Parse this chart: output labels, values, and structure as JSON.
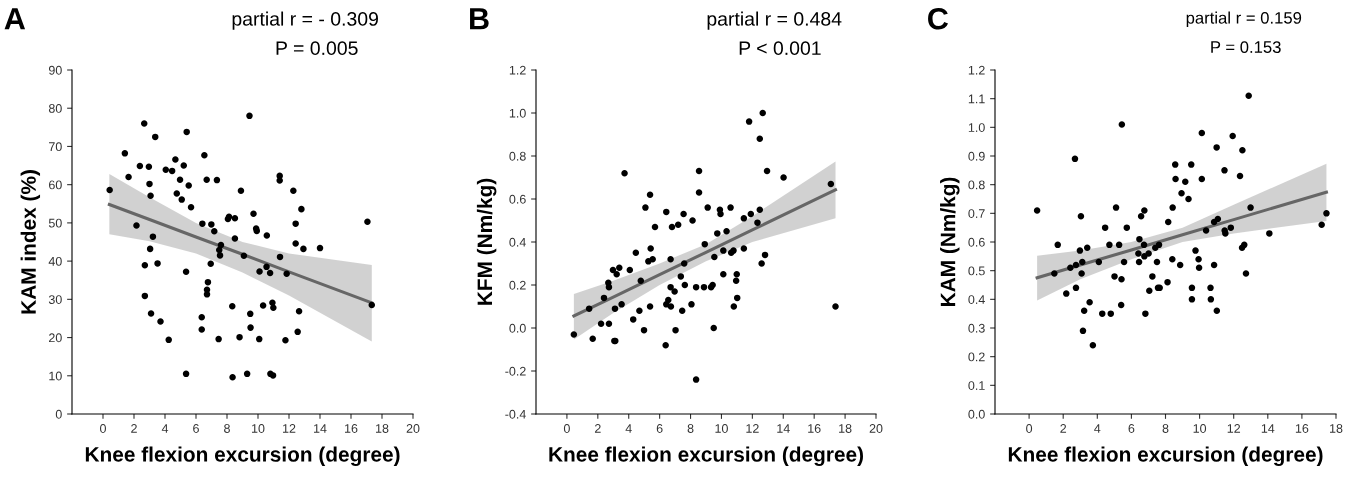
{
  "chart_data": [
    {
      "type": "scatter",
      "title": "A",
      "xlabel": "Knee flexion excursion (degree)",
      "ylabel": "KAM index (%)",
      "annotations": [
        "partial r = - 0.309",
        "P = 0.005"
      ],
      "xlim": [
        -2,
        20
      ],
      "xticks": [
        0,
        2,
        4,
        6,
        8,
        10,
        12,
        14,
        16,
        18,
        20
      ],
      "ylim": [
        0,
        90
      ],
      "yticks": [
        0,
        10,
        20,
        30,
        40,
        50,
        60,
        70,
        80,
        90
      ],
      "grid": false,
      "series": [
        {
          "marker": "circle",
          "color": "#000000",
          "x": [
            0.43,
            1.41,
            1.65,
            2.16,
            2.38,
            2.66,
            2.7,
            2.7,
            2.96,
            3.0,
            3.07,
            3.04,
            3.1,
            3.22,
            3.37,
            3.52,
            3.71,
            4.05,
            4.24,
            4.46,
            4.67,
            4.76,
            4.97,
            5.08,
            5.21,
            5.36,
            5.36,
            5.4,
            5.53,
            5.68,
            6.37,
            6.37,
            6.41,
            6.54,
            6.69,
            6.71,
            6.71,
            6.77,
            6.95,
            6.99,
            7.18,
            7.35,
            7.46,
            7.5,
            7.55,
            7.61,
            8.06,
            8.13,
            8.36,
            8.34,
            8.51,
            8.51,
            8.81,
            8.9,
            9.09,
            9.3,
            9.45,
            9.5,
            9.52,
            9.71,
            9.88,
            9.92,
            10.08,
            10.1,
            10.33,
            10.55,
            10.57,
            10.78,
            10.8,
            10.97,
            10.93,
            10.99,
            11.4,
            11.4,
            11.42,
            11.77,
            11.85,
            12.28,
            12.43,
            12.43,
            12.56,
            12.65,
            12.8,
            12.93,
            14.0,
            17.06,
            17.34
          ],
          "values": [
            58.6,
            68.2,
            62.0,
            49.3,
            64.9,
            76.0,
            38.9,
            30.9,
            64.7,
            60.2,
            57.1,
            43.2,
            26.3,
            46.4,
            72.5,
            39.4,
            24.2,
            63.9,
            19.4,
            63.6,
            66.6,
            57.7,
            61.3,
            56.1,
            65.0,
            10.5,
            37.2,
            73.8,
            59.8,
            54.1,
            25.3,
            22.1,
            49.8,
            67.7,
            61.3,
            31.3,
            32.5,
            34.5,
            39.3,
            49.6,
            47.8,
            61.2,
            19.6,
            42.9,
            41.5,
            44.2,
            51.0,
            51.6,
            9.6,
            28.2,
            51.2,
            45.9,
            20.1,
            58.4,
            41.4,
            10.5,
            78.0,
            26.2,
            22.6,
            52.4,
            48.5,
            47.9,
            19.6,
            37.3,
            28.4,
            38.5,
            46.7,
            36.9,
            10.5,
            10.1,
            29.1,
            27.8,
            62.3,
            61.1,
            41.1,
            19.3,
            36.7,
            58.4,
            44.6,
            49.8,
            21.5,
            26.9,
            53.6,
            43.2,
            43.4,
            50.3,
            28.5
          ]
        },
        {
          "type": "line",
          "color": "#666666",
          "x": [
            0.41,
            3,
            6,
            9,
            12,
            17.34
          ],
          "values": [
            54.8,
            50.9,
            46.3,
            41.8,
            37.2,
            29.1
          ],
          "lower": [
            47.0,
            45.2,
            42.0,
            37.0,
            31.0,
            19.0
          ],
          "upper": [
            62.8,
            56.7,
            50.0,
            45.0,
            42.0,
            39.0
          ],
          "marker": "none"
        }
      ]
    },
    {
      "type": "scatter",
      "title": "B",
      "xlabel": "Knee flexion excursion (degree)",
      "ylabel": "KFM (Nm/kg)",
      "annotations": [
        "partial r = 0.484",
        "P < 0.001"
      ],
      "xlim": [
        -2,
        20
      ],
      "xticks": [
        0,
        2,
        4,
        6,
        8,
        10,
        12,
        14,
        16,
        18,
        20
      ],
      "ylim": [
        -0.4,
        1.2
      ],
      "yticks": [
        {
          "value": -0.4,
          "label": "-0.4"
        },
        {
          "value": -0.2,
          "label": "-0.2"
        },
        {
          "value": 0,
          "label": "0.0"
        },
        0.2,
        0.4,
        0.6,
        0.8,
        {
          "value": 1.0,
          "label": "1.0"
        },
        1.2
      ],
      "grid": false,
      "series": [
        {
          "marker": "circle",
          "color": "#000000",
          "x": [
            0.45,
            1.44,
            1.67,
            2.21,
            2.4,
            2.68,
            2.72,
            2.72,
            2.98,
            3.07,
            3.11,
            3.13,
            3.22,
            3.39,
            3.54,
            3.73,
            4.07,
            4.29,
            4.46,
            4.69,
            4.78,
            4.99,
            5.08,
            5.27,
            5.38,
            5.42,
            5.38,
            5.55,
            5.7,
            6.39,
            6.43,
            6.43,
            6.56,
            6.71,
            6.71,
            6.73,
            6.8,
            6.97,
            7.03,
            7.2,
            7.37,
            7.46,
            7.55,
            7.59,
            7.63,
            8.06,
            8.13,
            8.36,
            8.36,
            8.55,
            8.55,
            8.87,
            8.92,
            9.11,
            9.33,
            9.43,
            9.5,
            9.54,
            9.73,
            9.9,
            9.94,
            10.12,
            10.12,
            10.33,
            10.59,
            10.63,
            10.78,
            10.8,
            10.95,
            10.99,
            11.02,
            11.45,
            11.45,
            11.79,
            11.9,
            12.33,
            12.48,
            12.48,
            12.6,
            12.67,
            12.82,
            12.95,
            14.02,
            17.08,
            17.38
          ],
          "values": [
            -0.03,
            0.09,
            -0.05,
            0.02,
            0.14,
            0.21,
            0.19,
            0.02,
            0.27,
            -0.06,
            0.09,
            -0.06,
            0.25,
            0.28,
            0.11,
            0.72,
            0.27,
            0.04,
            0.35,
            0.08,
            0.22,
            -0.01,
            0.56,
            0.31,
            0.62,
            0.37,
            0.1,
            0.32,
            0.47,
            -0.08,
            0.54,
            0.11,
            0.13,
            0.32,
            0.19,
            0.1,
            0.47,
            0.17,
            -0.01,
            0.48,
            0.24,
            0.08,
            0.53,
            0.3,
            0.2,
            0.11,
            0.5,
            -0.24,
            0.19,
            0.73,
            0.63,
            0.19,
            0.39,
            0.56,
            0.19,
            0.2,
            0.0,
            0.33,
            0.44,
            0.55,
            0.53,
            0.25,
            0.36,
            0.45,
            0.56,
            0.35,
            0.36,
            0.1,
            0.22,
            0.25,
            0.14,
            0.37,
            0.51,
            0.96,
            0.53,
            0.49,
            0.55,
            0.88,
            0.3,
            1.0,
            0.34,
            0.73,
            0.7,
            0.67,
            0.1
          ]
        },
        {
          "type": "line",
          "color": "#666666",
          "x": [
            0.45,
            3,
            6,
            9,
            12,
            17.38
          ],
          "values": [
            0.056,
            0.144,
            0.248,
            0.352,
            0.456,
            0.643
          ],
          "lower": [
            -0.053,
            0.07,
            0.2,
            0.31,
            0.4,
            0.51
          ],
          "upper": [
            0.158,
            0.22,
            0.3,
            0.39,
            0.52,
            0.774
          ],
          "marker": "none"
        }
      ]
    },
    {
      "type": "scatter",
      "title": "C",
      "xlabel": "Knee flexion excursion (degree)",
      "ylabel": "KAM (Nm/kg)",
      "annotations": [
        "partial r = 0.159",
        "P = 0.153"
      ],
      "xlim": [
        -2,
        18
      ],
      "xticks": [
        0,
        2,
        4,
        6,
        8,
        10,
        12,
        14,
        16,
        18
      ],
      "ylim": [
        0,
        1.2
      ],
      "yticks": [
        {
          "value": 0,
          "label": "0.0"
        },
        0.1,
        0.2,
        0.3,
        0.4,
        0.5,
        0.6,
        0.7,
        0.8,
        0.9,
        {
          "value": 1.0,
          "label": "1.0"
        },
        1.1,
        1.2
      ],
      "grid": false,
      "series": [
        {
          "marker": "circle",
          "color": "#000000",
          "x": [
            0.47,
            1.48,
            1.68,
            2.18,
            2.42,
            2.69,
            2.75,
            2.75,
            2.98,
            3.04,
            3.08,
            3.12,
            3.16,
            3.23,
            3.41,
            3.55,
            3.74,
            4.09,
            4.29,
            4.46,
            4.71,
            4.79,
            5.01,
            5.1,
            5.28,
            5.42,
            5.4,
            5.44,
            5.57,
            5.73,
            6.41,
            6.45,
            6.47,
            6.57,
            6.74,
            6.76,
            6.76,
            6.82,
            7.01,
            7.05,
            7.23,
            7.4,
            7.5,
            7.56,
            7.62,
            7.66,
            8.12,
            8.16,
            8.4,
            8.42,
            8.57,
            8.59,
            8.86,
            8.94,
            9.16,
            9.35,
            9.51,
            9.55,
            9.55,
            9.76,
            9.94,
            9.97,
            10.13,
            10.13,
            10.38,
            10.64,
            10.66,
            10.85,
            10.85,
            11.0,
            11.07,
            11.01,
            11.46,
            11.47,
            11.51,
            11.83,
            11.94,
            12.37,
            12.51,
            12.49,
            12.62,
            12.72,
            12.88,
            12.99,
            14.09,
            17.16,
            17.44
          ],
          "values": [
            0.71,
            0.49,
            0.59,
            0.42,
            0.51,
            0.89,
            0.52,
            0.44,
            0.57,
            0.69,
            0.49,
            0.53,
            0.29,
            0.36,
            0.58,
            0.39,
            0.24,
            0.53,
            0.35,
            0.65,
            0.59,
            0.35,
            0.48,
            0.72,
            0.59,
            0.47,
            0.38,
            1.01,
            0.53,
            0.65,
            0.56,
            0.53,
            0.61,
            0.69,
            0.59,
            0.55,
            0.71,
            0.35,
            0.56,
            0.43,
            0.48,
            0.58,
            0.53,
            0.44,
            0.59,
            0.44,
            0.46,
            0.67,
            0.54,
            0.72,
            0.87,
            0.82,
            0.52,
            0.77,
            0.81,
            0.75,
            0.87,
            0.44,
            0.4,
            0.57,
            0.54,
            0.51,
            0.98,
            0.82,
            0.64,
            0.44,
            0.4,
            0.67,
            0.52,
            0.93,
            0.68,
            0.36,
            0.85,
            0.64,
            0.63,
            0.65,
            0.97,
            0.83,
            0.92,
            0.58,
            0.59,
            0.49,
            1.11,
            0.72,
            0.63,
            0.66,
            0.7
          ]
        },
        {
          "type": "line",
          "color": "#666666",
          "x": [
            0.47,
            3,
            6,
            9,
            12,
            17.44
          ],
          "values": [
            0.475,
            0.52,
            0.572,
            0.625,
            0.678,
            0.774
          ],
          "lower": [
            0.396,
            0.47,
            0.54,
            0.6,
            0.63,
            0.673
          ],
          "upper": [
            0.552,
            0.57,
            0.6,
            0.65,
            0.73,
            0.873
          ],
          "marker": "none"
        }
      ]
    }
  ]
}
